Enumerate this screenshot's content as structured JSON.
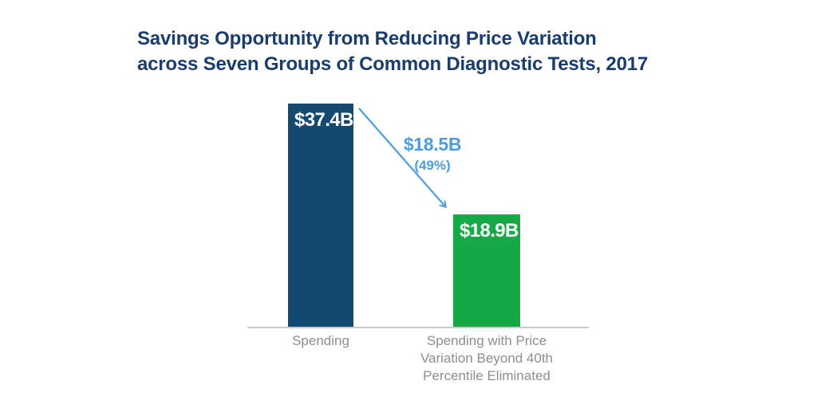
{
  "title": "Savings Opportunity from Reducing Price Variation\nacross Seven Groups of Common Diagnostic Tests, 2017",
  "chart_data": {
    "type": "bar",
    "title": "Savings Opportunity from Reducing Price Variation across Seven Groups of Common Diagnostic Tests, 2017",
    "categories": [
      "Spending",
      "Spending with Price\nVariation Beyond 40th\nPercentile Eliminated"
    ],
    "values": [
      37.4,
      18.9
    ],
    "bar_labels": [
      "$37.4B",
      "$18.9B"
    ],
    "bar_colors": [
      "#15496F",
      "#17A948"
    ],
    "annotation": {
      "text": "$18.5B",
      "detail": "(49%)",
      "color": "#4E9CDF"
    },
    "xlabel": "",
    "ylabel": "",
    "grid": false,
    "legend_position": "none",
    "axis_line_color": "#C9C9C9",
    "category_label_color": "#8E8E90",
    "title_color": "#1B3D6D"
  }
}
